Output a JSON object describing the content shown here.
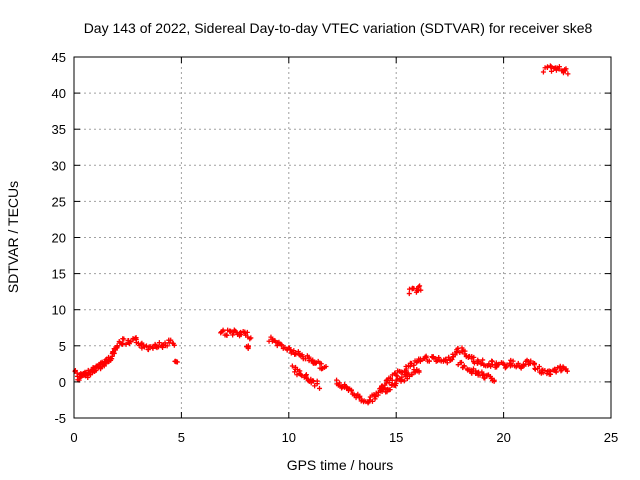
{
  "chart_data": {
    "type": "scatter",
    "title": "Day 143 of 2022, Sidereal Day-to-day VTEC variation (SDTVAR) for receiver ske8",
    "xlabel": "GPS time / hours",
    "ylabel": "SDTVAR / TECUs",
    "xlim": [
      0,
      25
    ],
    "ylim": [
      -5,
      45
    ],
    "xticks": [
      "0",
      "5",
      "10",
      "15",
      "20",
      "25"
    ],
    "yticks": [
      "-5",
      "0",
      "5",
      "10",
      "15",
      "20",
      "25",
      "30",
      "35",
      "40",
      "45"
    ],
    "grid": true,
    "marker_color": "#ff0000",
    "series": [
      {
        "name": "SDTVAR",
        "segments": [
          {
            "x": [
              0.05,
              0.3,
              0.6,
              0.9,
              1.2,
              1.5,
              1.8,
              2.0,
              2.3,
              2.6,
              2.9,
              3.2,
              3.5,
              3.8,
              4.1,
              4.4,
              4.7
            ],
            "y": [
              1.5,
              0.8,
              1.0,
              1.6,
              2.2,
              2.8,
              3.8,
              5.0,
              5.6,
              5.3,
              5.8,
              5.0,
              4.8,
              5.2,
              5.0,
              5.5,
              5.2
            ]
          },
          {
            "x": [
              0.2,
              0.5,
              0.8,
              1.1,
              1.4,
              1.7
            ],
            "y": [
              0.5,
              0.9,
              1.4,
              2.0,
              2.6,
              3.2
            ]
          },
          {
            "x": [
              4.75
            ],
            "y": [
              2.8
            ]
          },
          {
            "x": [
              6.8,
              7.1,
              7.4,
              7.7,
              8.0,
              8.2
            ],
            "y": [
              7.0,
              6.8,
              6.9,
              6.5,
              6.6,
              6.3
            ]
          },
          {
            "x": [
              8.1
            ],
            "y": [
              4.8
            ]
          },
          {
            "x": [
              9.1,
              9.4,
              9.7,
              10.0,
              10.3,
              10.6,
              10.9,
              11.2,
              11.5,
              11.7
            ],
            "y": [
              6.0,
              5.5,
              5.0,
              4.5,
              4.0,
              3.6,
              3.2,
              2.8,
              2.3,
              1.8
            ]
          },
          {
            "x": [
              10.2,
              10.5,
              10.8,
              11.1,
              11.4
            ],
            "y": [
              1.8,
              1.2,
              0.6,
              0.0,
              -0.5
            ]
          },
          {
            "x": [
              12.2,
              12.5,
              12.8,
              13.1,
              13.4,
              13.7,
              14.0,
              14.3,
              14.6,
              14.9,
              15.2,
              15.5,
              15.8,
              16.1,
              16.4,
              16.7,
              17.0,
              17.3,
              17.6,
              17.9,
              18.2,
              18.5,
              18.8,
              19.1,
              19.4,
              19.7,
              20.0,
              20.3,
              20.6,
              20.9,
              21.2,
              21.5,
              21.8,
              22.1,
              22.4,
              22.7,
              23.0
            ],
            "y": [
              0.0,
              -0.6,
              -1.2,
              -1.8,
              -2.4,
              -2.6,
              -2.0,
              -1.0,
              0.0,
              0.8,
              1.5,
              2.0,
              2.5,
              3.0,
              3.3,
              3.1,
              3.0,
              2.8,
              3.5,
              4.5,
              4.0,
              3.2,
              2.8,
              2.6,
              2.5,
              2.4,
              2.2,
              2.6,
              2.4,
              2.2,
              2.8,
              2.0,
              1.5,
              1.2,
              1.6,
              1.8,
              1.5
            ]
          },
          {
            "x": [
              14.3,
              14.6,
              14.9,
              15.2,
              15.5,
              15.8,
              16.1
            ],
            "y": [
              -1.5,
              -1.0,
              -0.4,
              0.2,
              0.8,
              1.3,
              1.8
            ]
          },
          {
            "x": [
              17.9,
              18.2,
              18.5,
              18.8,
              19.1,
              19.4,
              19.6
            ],
            "y": [
              2.5,
              2.0,
              1.6,
              1.3,
              0.9,
              0.5,
              0.1
            ]
          },
          {
            "x": [
              15.6,
              15.8,
              16.0,
              16.1
            ],
            "y": [
              12.5,
              12.7,
              12.9,
              13.0
            ]
          },
          {
            "x": [
              21.9,
              22.2,
              22.5,
              22.8,
              23.0
            ],
            "y": [
              43.2,
              43.4,
              43.3,
              43.2,
              42.9
            ]
          }
        ]
      }
    ]
  }
}
